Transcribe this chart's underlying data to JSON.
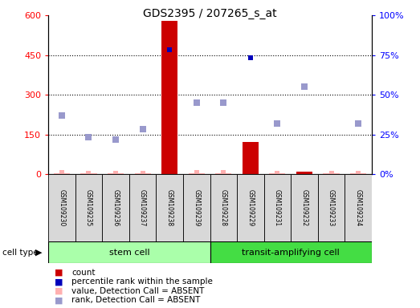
{
  "title": "GDS2395 / 207265_s_at",
  "samples": [
    "GSM109230",
    "GSM109235",
    "GSM109236",
    "GSM109237",
    "GSM109238",
    "GSM109239",
    "GSM109228",
    "GSM109229",
    "GSM109231",
    "GSM109232",
    "GSM109233",
    "GSM109234"
  ],
  "cell_types": [
    "stem cell",
    "stem cell",
    "stem cell",
    "stem cell",
    "stem cell",
    "stem cell",
    "transit-amplifying cell",
    "transit-amplifying cell",
    "transit-amplifying cell",
    "transit-amplifying cell",
    "transit-amplifying cell",
    "transit-amplifying cell"
  ],
  "count_values": [
    3,
    2,
    2,
    2,
    580,
    2,
    2,
    120,
    2,
    10,
    2,
    2
  ],
  "count_absent": [
    true,
    true,
    true,
    true,
    false,
    true,
    true,
    false,
    true,
    false,
    true,
    true
  ],
  "percentile_values": [
    null,
    null,
    null,
    null,
    470,
    null,
    null,
    440,
    null,
    null,
    null,
    null
  ],
  "rank_absent_values": [
    220,
    140,
    130,
    170,
    null,
    270,
    270,
    null,
    190,
    330,
    null,
    190
  ],
  "value_absent_values": [
    5,
    3,
    3,
    3,
    null,
    5,
    5,
    null,
    3,
    15,
    3,
    3
  ],
  "ylim_left": [
    0,
    600
  ],
  "ylim_right": [
    0,
    100
  ],
  "yticks_left": [
    0,
    150,
    300,
    450,
    600
  ],
  "yticks_right": [
    0,
    25,
    50,
    75,
    100
  ],
  "yticklabels_left": [
    "0",
    "150",
    "300",
    "450",
    "600"
  ],
  "yticklabels_right": [
    "0%",
    "25%",
    "50%",
    "75%",
    "100%"
  ],
  "count_color_present": "#cc0000",
  "count_color_absent": "#ffb0b0",
  "percentile_color": "#0000bb",
  "rank_absent_color": "#9999cc",
  "value_absent_color": "#ffb0b0",
  "stem_cell_color": "#aaffaa",
  "transit_cell_color": "#44dd44",
  "legend_items": [
    {
      "label": "count",
      "color": "#cc0000"
    },
    {
      "label": "percentile rank within the sample",
      "color": "#0000bb"
    },
    {
      "label": "value, Detection Call = ABSENT",
      "color": "#ffb0b0"
    },
    {
      "label": "rank, Detection Call = ABSENT",
      "color": "#9999cc"
    }
  ],
  "bg_color": "#ffffff"
}
